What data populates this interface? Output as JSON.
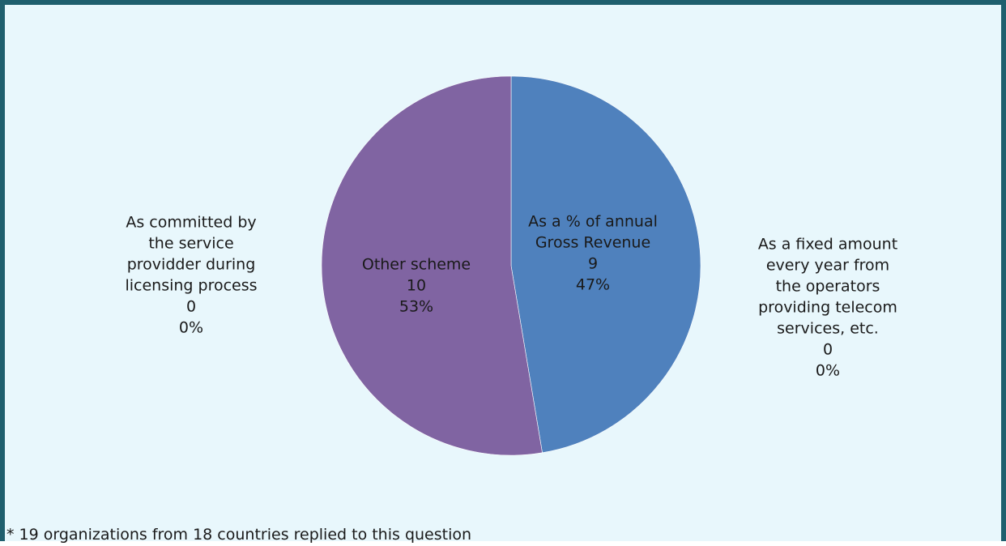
{
  "chart_data": {
    "type": "pie",
    "slices": [
      {
        "id": "gross_revenue",
        "label_lines": [
          "As a % of annual",
          "Gross Revenue"
        ],
        "value": 9,
        "percent": "47%",
        "color": "#4f81bd"
      },
      {
        "id": "fixed_amount",
        "label_lines": [
          "As a fixed amount",
          "every year from",
          "the operators",
          "providing telecom",
          "services, etc."
        ],
        "value": 0,
        "percent": "0%",
        "color": "#c0504d"
      },
      {
        "id": "committed",
        "label_lines": [
          "As committed by",
          "the service",
          "providder during",
          "licensing process"
        ],
        "value": 0,
        "percent": "0%",
        "color": "#9bbb59"
      },
      {
        "id": "other_scheme",
        "label_lines": [
          "Other scheme"
        ],
        "value": 10,
        "percent": "53%",
        "color": "#8064a2"
      }
    ]
  },
  "footnote": "* 19 organizations from 18 countries replied to this question"
}
